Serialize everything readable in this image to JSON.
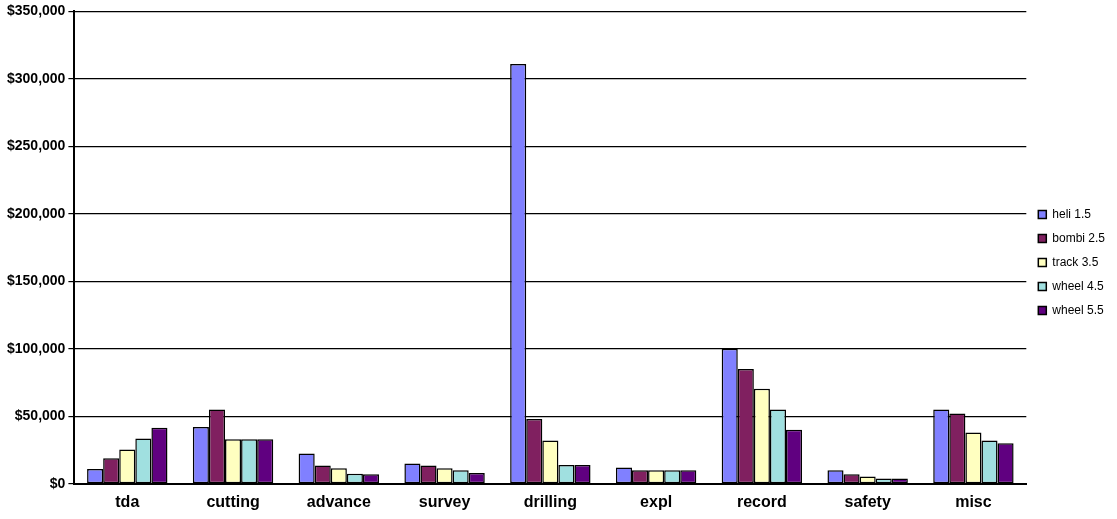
{
  "chart_data": {
    "type": "bar",
    "categories": [
      "tda",
      "cutting",
      "advance",
      "survey",
      "drilling",
      "expl",
      "record",
      "safety",
      "misc"
    ],
    "series": [
      {
        "name": "heli 1.5",
        "color": "#8080ff",
        "values": [
          11000,
          42000,
          22500,
          15000,
          311000,
          12000,
          100000,
          10000,
          55000
        ]
      },
      {
        "name": "bombi 2.5",
        "color": "#802060",
        "values": [
          19000,
          55000,
          13500,
          13500,
          48000,
          10000,
          85000,
          7000,
          52000
        ]
      },
      {
        "name": "track 3.5",
        "color": "#ffffc0",
        "values": [
          25500,
          33000,
          11500,
          11500,
          32000,
          10000,
          70500,
          5500,
          38000
        ]
      },
      {
        "name": "wheel 4.5",
        "color": "#a0e0e0",
        "values": [
          33500,
          33000,
          7500,
          10000,
          14000,
          10000,
          55000,
          4000,
          32000
        ]
      },
      {
        "name": "wheel 5.5",
        "color": "#600080",
        "values": [
          41500,
          33000,
          7000,
          8000,
          14000,
          10000,
          40000,
          4000,
          30000
        ]
      }
    ],
    "ylim": [
      0,
      350000
    ],
    "yticks": [
      {
        "value": 0,
        "label": "$0"
      },
      {
        "value": 50000,
        "label": "$50,000"
      },
      {
        "value": 100000,
        "label": "$100,000"
      },
      {
        "value": 150000,
        "label": "$150,000"
      },
      {
        "value": 200000,
        "label": "$200,000"
      },
      {
        "value": 250000,
        "label": "$250,000"
      },
      {
        "value": 300000,
        "label": "$300,000"
      },
      {
        "value": 350000,
        "label": "$350,000"
      }
    ],
    "grid": "y",
    "legend": "right"
  }
}
